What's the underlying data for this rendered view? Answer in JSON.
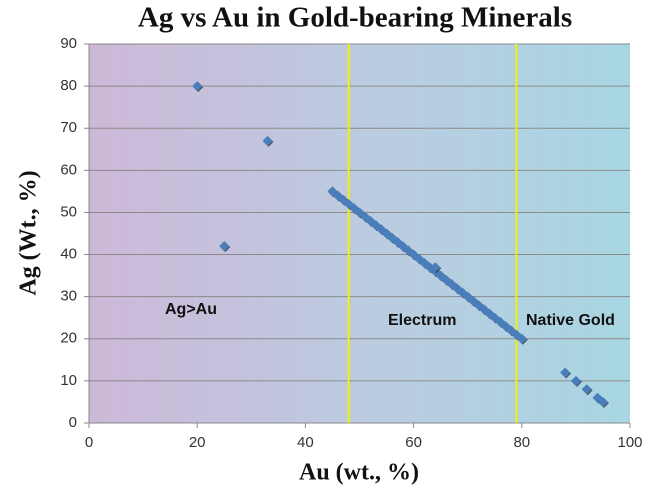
{
  "chart_data": {
    "type": "scatter",
    "title": "Ag vs Au in Gold-bearing Minerals",
    "x_label": "Au (wt., %)",
    "y_label": "Ag (Wt., %)",
    "x": [
      20,
      25,
      33,
      45,
      46,
      47,
      48,
      49,
      50,
      51,
      52,
      53,
      54,
      55,
      56,
      57,
      58,
      59,
      60,
      61,
      62,
      63,
      64,
      65,
      66,
      67,
      68,
      69,
      70,
      71,
      72,
      73,
      74,
      75,
      76,
      77,
      78,
      79,
      80,
      64,
      88,
      90,
      92,
      94,
      95
    ],
    "values": [
      80,
      42,
      67,
      55,
      54,
      53,
      52,
      51,
      50,
      49,
      48,
      47,
      46,
      45,
      44,
      43,
      42,
      41,
      40,
      39,
      38,
      37,
      36,
      35,
      34,
      33,
      32,
      31,
      30,
      29,
      28,
      27,
      26,
      25,
      24,
      23,
      22,
      21,
      20,
      37,
      12,
      10,
      8,
      6,
      5
    ],
    "color": "#4a7ebb",
    "xlim": [
      0,
      100
    ],
    "xticks": [
      0,
      20,
      40,
      60,
      80,
      100
    ],
    "ylim": [
      0,
      90
    ],
    "yticks": [
      0,
      10,
      20,
      30,
      40,
      50,
      60,
      70,
      80,
      90
    ],
    "grid": true,
    "vlines": [
      48,
      79
    ],
    "vline_color": "#f2f200",
    "annotations": [
      "Ag>Au",
      "Electrum",
      "Native Gold"
    ]
  }
}
